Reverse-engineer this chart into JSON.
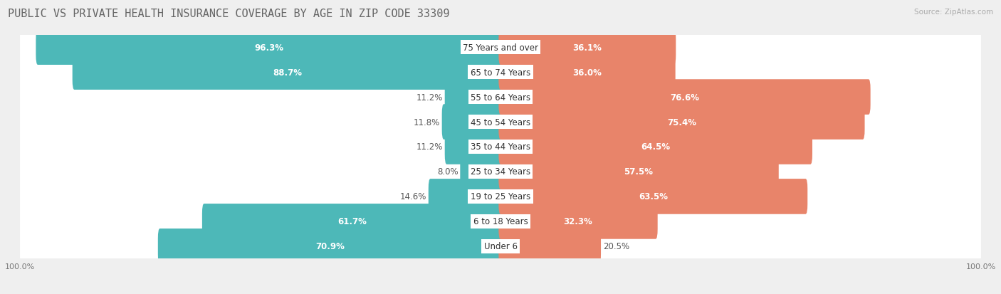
{
  "title": "PUBLIC VS PRIVATE HEALTH INSURANCE COVERAGE BY AGE IN ZIP CODE 33309",
  "source": "Source: ZipAtlas.com",
  "categories": [
    "Under 6",
    "6 to 18 Years",
    "19 to 25 Years",
    "25 to 34 Years",
    "35 to 44 Years",
    "45 to 54 Years",
    "55 to 64 Years",
    "65 to 74 Years",
    "75 Years and over"
  ],
  "public_values": [
    70.9,
    61.7,
    14.6,
    8.0,
    11.2,
    11.8,
    11.2,
    88.7,
    96.3
  ],
  "private_values": [
    20.5,
    32.3,
    63.5,
    57.5,
    64.5,
    75.4,
    76.6,
    36.0,
    36.1
  ],
  "public_color": "#4db8b8",
  "private_color": "#e8846a",
  "bg_color": "#efefef",
  "max_value": 100.0,
  "title_fontsize": 11,
  "label_fontsize": 8.5,
  "tick_fontsize": 8,
  "pub_label_inside_threshold": 25,
  "priv_label_inside_threshold": 25
}
